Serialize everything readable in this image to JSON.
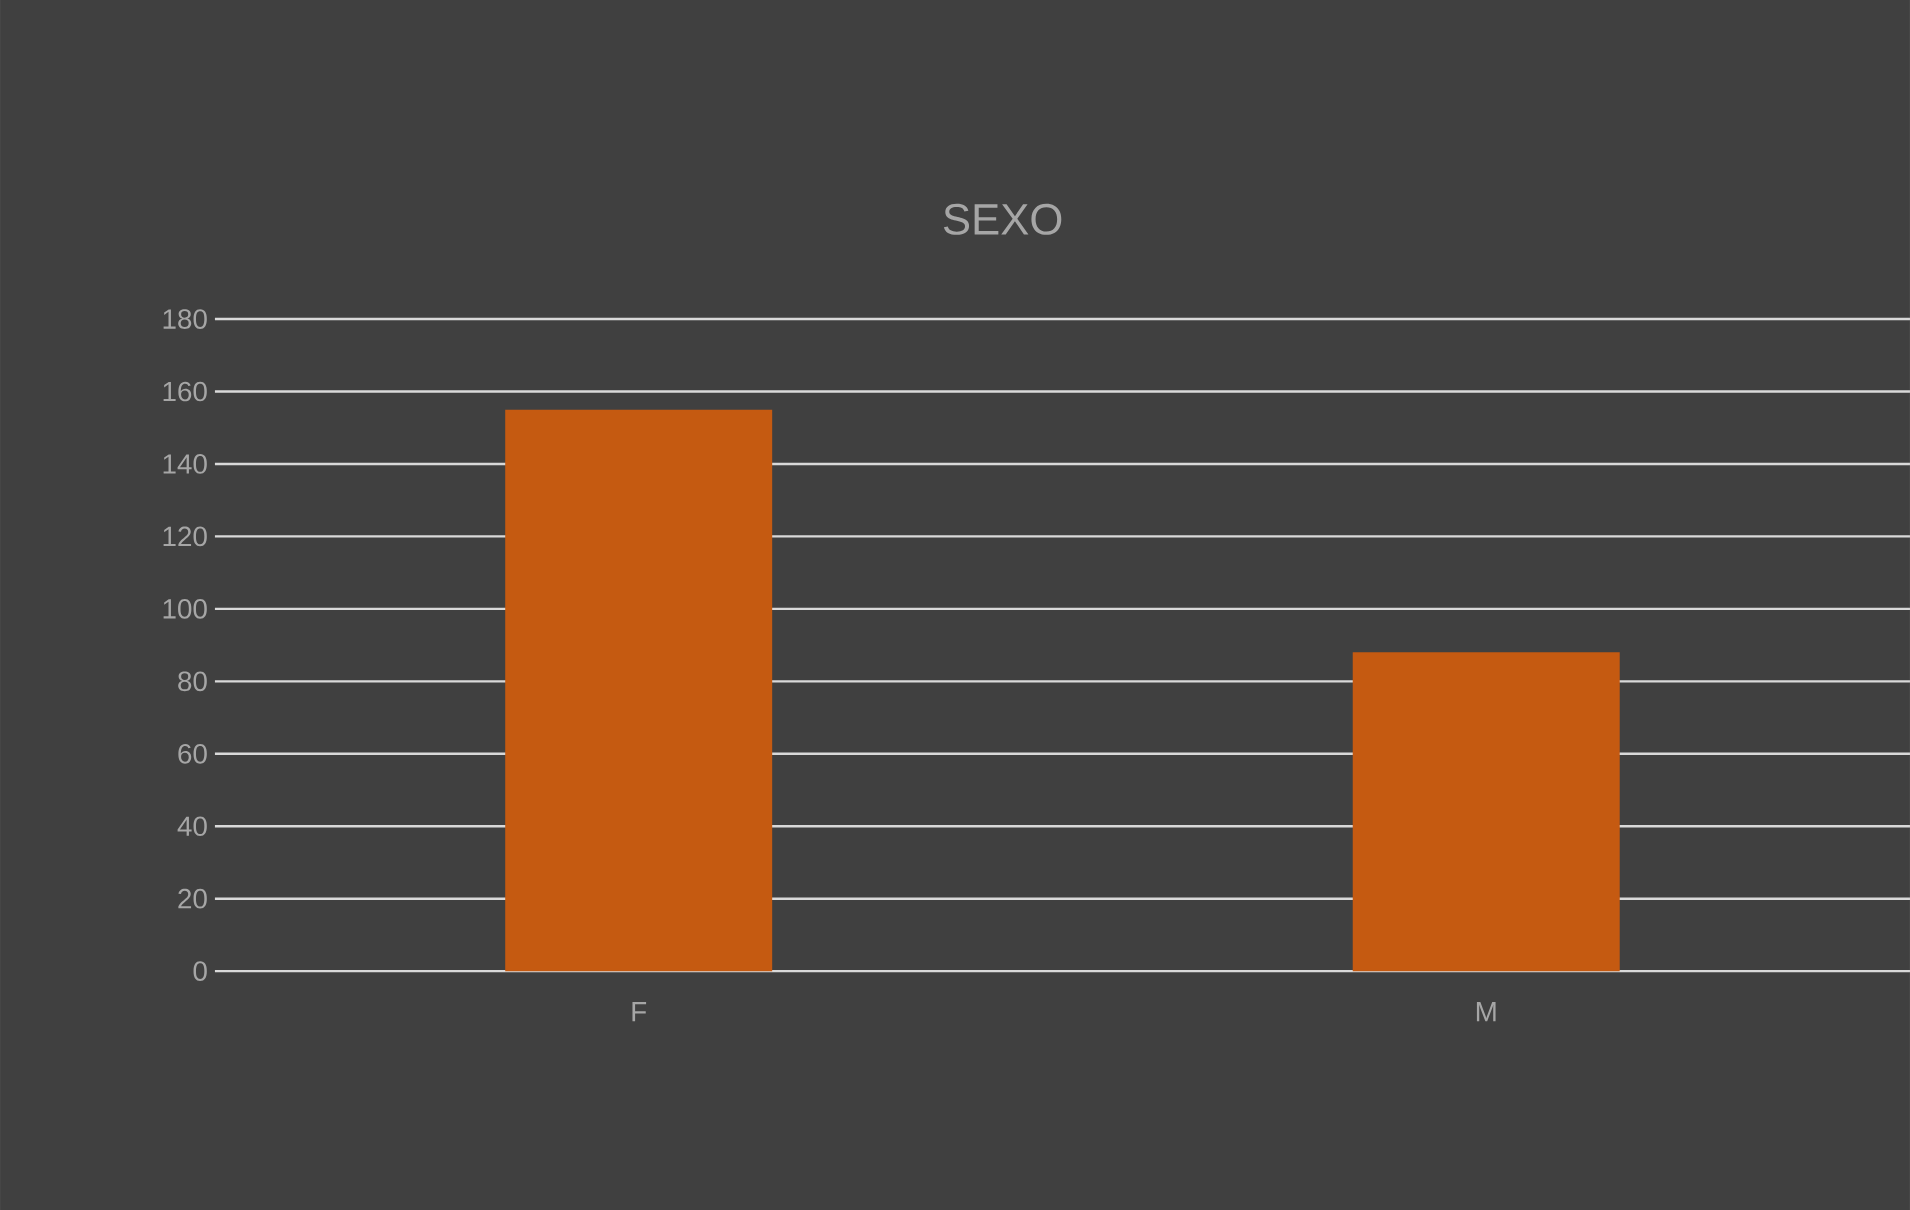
{
  "chart_data": {
    "type": "bar",
    "title": "SEXO",
    "categories": [
      "F",
      "M"
    ],
    "values": [
      155,
      88
    ],
    "color": "#c55a11",
    "ylim": [
      0,
      180
    ],
    "yticks": [
      0,
      20,
      40,
      60,
      80,
      100,
      120,
      140,
      160,
      180
    ],
    "grid": "y"
  }
}
